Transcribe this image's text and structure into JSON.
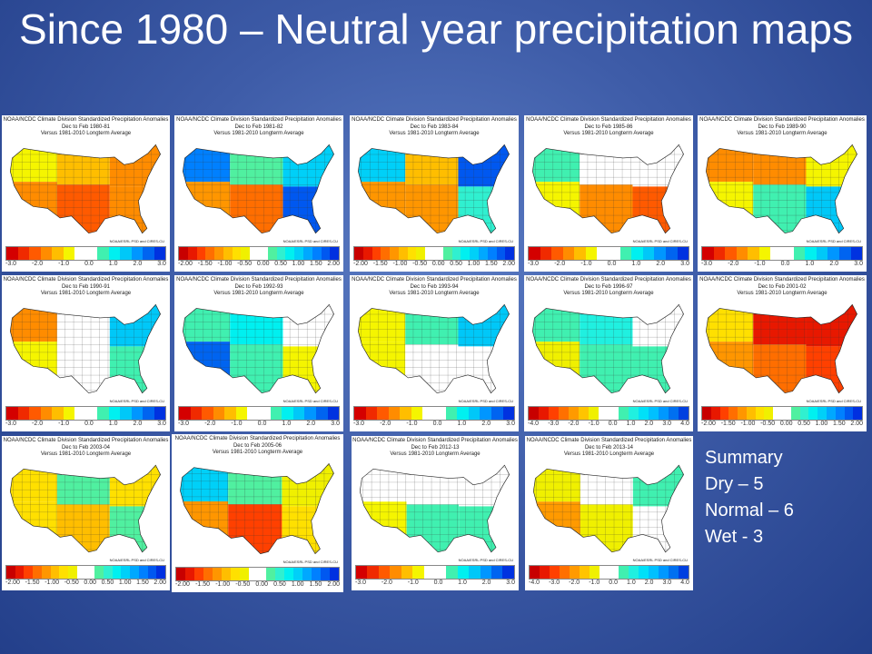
{
  "title": "Since 1980 – Neutral year precipitation maps",
  "header_line1": "NOAA/NCDC Climate Division Standardized Precipitation Anomalies",
  "header_line3": "Versus 1981-2010 Longterm Average",
  "credit": "NOAA/ESRL PSD and CIRES-CU",
  "palettes": {
    "A": [
      "#d40000",
      "#f02a00",
      "#ff5a00",
      "#ff8c00",
      "#ffbe00",
      "#f5f500",
      "#ffffff",
      "#ffffff",
      "#40f0b0",
      "#00f0f0",
      "#00c8f8",
      "#0096ff",
      "#0064f0",
      "#0032e0"
    ],
    "B": [
      "#c80000",
      "#e81800",
      "#ff4000",
      "#ff6e00",
      "#ff9600",
      "#ffbe00",
      "#ffe000",
      "#f0f000",
      "#ffffff",
      "#ffffff",
      "#50f0a0",
      "#30f0d0",
      "#00f0f0",
      "#00d0f8",
      "#00a8ff",
      "#0080ff",
      "#0058f0",
      "#0030e0"
    ],
    "C": [
      "#c80000",
      "#e81800",
      "#ff4000",
      "#ff7000",
      "#ff9a00",
      "#ffc400",
      "#f0f000",
      "#ffffff",
      "#ffffff",
      "#40f0b0",
      "#20f0e0",
      "#00e0f8",
      "#00c0ff",
      "#0098ff",
      "#0070f0",
      "#0040e0"
    ]
  },
  "tick_sets": {
    "A": [
      "-3.0",
      "-2.0",
      "-1.0",
      "0.0",
      "1.0",
      "2.0",
      "3.0"
    ],
    "B": [
      "-2.00",
      "-1.50",
      "-1.00",
      "-0.50",
      "0.00",
      "0.50",
      "1.00",
      "1.50",
      "2.00"
    ],
    "C": [
      "-4.0",
      "-3.0",
      "-2.0",
      "-1.0",
      "0.0",
      "1.0",
      "2.0",
      "3.0",
      "4.0"
    ]
  },
  "maps": [
    {
      "period": "Dec to Feb 1980-81",
      "scale": "A",
      "regions": [
        "#f5f500",
        "#ff8c00",
        "#ffbe00",
        "#ff5a00",
        "#ff8c00",
        "#ff8c00"
      ]
    },
    {
      "period": "Dec to Feb 1981-82",
      "scale": "B",
      "regions": [
        "#0080ff",
        "#ff9600",
        "#50f0a0",
        "#ff6e00",
        "#00d0f8",
        "#0058f0"
      ]
    },
    {
      "period": "Dec to Feb 1983-84",
      "scale": "B",
      "regions": [
        "#00d0f8",
        "#ff9600",
        "#ffbe00",
        "#ff9600",
        "#0058f0",
        "#30f0d0"
      ]
    },
    {
      "period": "Dec to Feb 1985-86",
      "scale": "A",
      "regions": [
        "#40f0b0",
        "#f5f500",
        "#ffffff",
        "#ff8c00",
        "#ffffff",
        "#ff5a00"
      ]
    },
    {
      "period": "Dec to Feb 1989-90",
      "scale": "A",
      "regions": [
        "#ff8c00",
        "#f5f500",
        "#ff8c00",
        "#40f0b0",
        "#f5f500",
        "#00c8f8"
      ]
    },
    {
      "period": "Dec to Feb 1990-91",
      "scale": "A",
      "regions": [
        "#ff8c00",
        "#f5f500",
        "#ffffff",
        "#ffffff",
        "#00c8f8",
        "#40f0b0"
      ]
    },
    {
      "period": "Dec to Feb 1992-93",
      "scale": "A",
      "regions": [
        "#40f0b0",
        "#0064f0",
        "#00f0f0",
        "#40f0b0",
        "#ffffff",
        "#f5f500"
      ]
    },
    {
      "period": "Dec to Feb 1993-94",
      "scale": "A",
      "regions": [
        "#f5f500",
        "#f5f500",
        "#40f0b0",
        "#ffffff",
        "#00c8f8",
        "#ffffff"
      ]
    },
    {
      "period": "Dec to Feb 1996-97",
      "scale": "C",
      "regions": [
        "#40f0b0",
        "#f0f000",
        "#20f0e0",
        "#40f0b0",
        "#ffffff",
        "#40f0b0"
      ]
    },
    {
      "period": "Dec to Feb 2001-02",
      "scale": "B",
      "regions": [
        "#ffe000",
        "#ff9600",
        "#e81800",
        "#ff6e00",
        "#e81800",
        "#ff4000"
      ]
    },
    {
      "period": "Dec to Feb 2003-04",
      "scale": "B",
      "regions": [
        "#ffe000",
        "#ffe000",
        "#50f0a0",
        "#ffbe00",
        "#ffe000",
        "#50f0a0"
      ]
    },
    {
      "period": "Dec to Feb 2005-06",
      "scale": "B",
      "regions": [
        "#00d0f8",
        "#ff9600",
        "#50f0a0",
        "#ff4000",
        "#f0f000",
        "#ffe000"
      ]
    },
    {
      "period": "Dec to Feb 2012-13",
      "scale": "A",
      "regions": [
        "#ffffff",
        "#f5f500",
        "#ffffff",
        "#40f0b0",
        "#ffffff",
        "#40f0b0"
      ]
    },
    {
      "period": "Dec to Feb 2013-14",
      "scale": "C",
      "regions": [
        "#f0f000",
        "#ff9a00",
        "#ffffff",
        "#f0f000",
        "#40f0b0",
        "#ffffff"
      ]
    }
  ],
  "summary": {
    "heading": "Summary",
    "lines": [
      "Dry – 5",
      "Normal – 6",
      "Wet - 3"
    ]
  }
}
